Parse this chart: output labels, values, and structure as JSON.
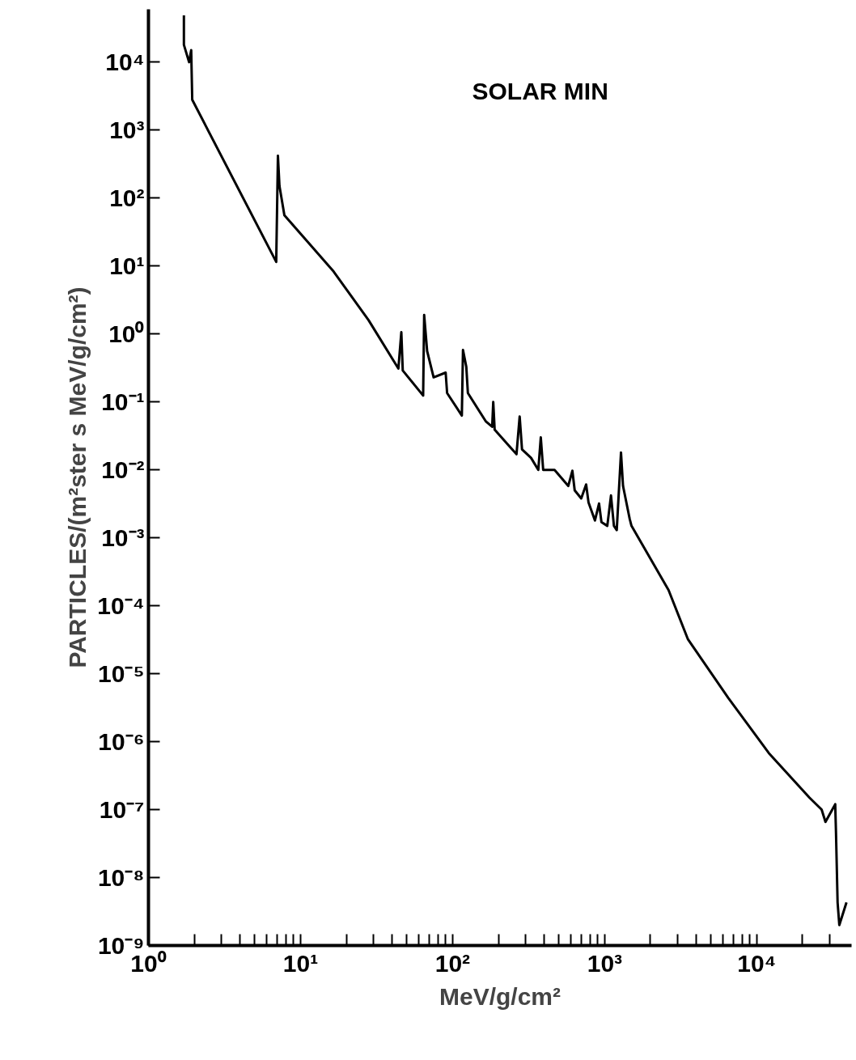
{
  "chart_data": {
    "type": "line",
    "xlabel": "MeV/g/cm²",
    "ylabel": "PARTICLES/(m²ster s MeV/g/cm²)",
    "annotations": [
      "SOLAR MIN"
    ],
    "log": "xy",
    "grid": false,
    "line_style": "solid",
    "xlim": [
      1,
      42000
    ],
    "ylim": [
      1e-09,
      60000
    ],
    "xticks": [
      {
        "value": 1,
        "label": "10⁰"
      },
      {
        "value": 10,
        "label": "10¹"
      },
      {
        "value": 100,
        "label": "10²"
      },
      {
        "value": 1000,
        "label": "10³"
      },
      {
        "value": 10000,
        "label": "10⁴"
      },
      {
        "value": 2,
        "label": null
      },
      {
        "value": 3,
        "label": null
      },
      {
        "value": 4,
        "label": null
      },
      {
        "value": 5,
        "label": null
      },
      {
        "value": 6,
        "label": null
      },
      {
        "value": 7,
        "label": null
      },
      {
        "value": 8,
        "label": null
      },
      {
        "value": 9,
        "label": null
      },
      {
        "value": 20,
        "label": null
      },
      {
        "value": 30,
        "label": null
      },
      {
        "value": 40,
        "label": null
      },
      {
        "value": 50,
        "label": null
      },
      {
        "value": 60,
        "label": null
      },
      {
        "value": 70,
        "label": null
      },
      {
        "value": 80,
        "label": null
      },
      {
        "value": 90,
        "label": null
      },
      {
        "value": 200,
        "label": null
      },
      {
        "value": 300,
        "label": null
      },
      {
        "value": 400,
        "label": null
      },
      {
        "value": 500,
        "label": null
      },
      {
        "value": 600,
        "label": null
      },
      {
        "value": 700,
        "label": null
      },
      {
        "value": 800,
        "label": null
      },
      {
        "value": 900,
        "label": null
      },
      {
        "value": 2000,
        "label": null
      },
      {
        "value": 3000,
        "label": null
      },
      {
        "value": 4000,
        "label": null
      },
      {
        "value": 5000,
        "label": null
      },
      {
        "value": 6000,
        "label": null
      },
      {
        "value": 7000,
        "label": null
      },
      {
        "value": 8000,
        "label": null
      },
      {
        "value": 9000,
        "label": null
      },
      {
        "value": 20000,
        "label": null
      },
      {
        "value": 30000,
        "label": null
      }
    ],
    "yticks": [
      {
        "value": 1e-09,
        "label": "10⁻⁹"
      },
      {
        "value": 1e-08,
        "label": "10⁻⁸"
      },
      {
        "value": 1e-07,
        "label": "10⁻⁷"
      },
      {
        "value": 1e-06,
        "label": "10⁻⁶"
      },
      {
        "value": 1e-05,
        "label": "10⁻⁵"
      },
      {
        "value": 0.0001,
        "label": "10⁻⁴"
      },
      {
        "value": 0.001,
        "label": "10⁻³"
      },
      {
        "value": 0.01,
        "label": "10⁻²"
      },
      {
        "value": 0.1,
        "label": "10⁻¹"
      },
      {
        "value": 1,
        "label": "10⁰"
      },
      {
        "value": 10,
        "label": "10¹"
      },
      {
        "value": 100,
        "label": "10²"
      },
      {
        "value": 1000,
        "label": "10³"
      },
      {
        "value": 10000,
        "label": "10⁴"
      }
    ],
    "series": [
      {
        "color": "#000000",
        "x": [
          1.71,
          1.71,
          1.85,
          1.91,
          1.94,
          6.92,
          7.1,
          7.27,
          7.83,
          16.5,
          28,
          44,
          46,
          47,
          64,
          65,
          68,
          75,
          90,
          92,
          115,
          117,
          123,
          126,
          165,
          182,
          185,
          189,
          233,
          263,
          276,
          286,
          328,
          366,
          380,
          394,
          468,
          576,
          613,
          635,
          701,
          755,
          783,
          863,
          918,
          952,
          1040,
          1100,
          1150,
          1200,
          1280,
          1320,
          1460,
          1500,
          2630,
          3530,
          6500,
          12000,
          22200,
          26700,
          28300,
          32800,
          33200,
          34000,
          34900,
          38900
        ],
        "values": [
          49000,
          18000,
          10000,
          15000,
          2800,
          11.5,
          420,
          150,
          56,
          8.3,
          1.6,
          0.31,
          1.06,
          0.29,
          0.124,
          1.9,
          0.56,
          0.23,
          0.27,
          0.135,
          0.063,
          0.58,
          0.33,
          0.135,
          0.052,
          0.043,
          0.1,
          0.039,
          0.023,
          0.017,
          0.061,
          0.02,
          0.015,
          0.01,
          0.03,
          0.01,
          0.01,
          0.0058,
          0.0097,
          0.005,
          0.0038,
          0.0061,
          0.0033,
          0.0018,
          0.0032,
          0.0017,
          0.0015,
          0.0042,
          0.0015,
          0.0013,
          0.018,
          0.0058,
          0.0019,
          0.0015,
          0.00017,
          3.2e-05,
          4.4e-06,
          6.8e-07,
          1.5e-07,
          1e-07,
          6.6e-08,
          1.2e-07,
          4.4e-08,
          4.3e-09,
          2e-09,
          4.3e-09
        ]
      }
    ]
  }
}
